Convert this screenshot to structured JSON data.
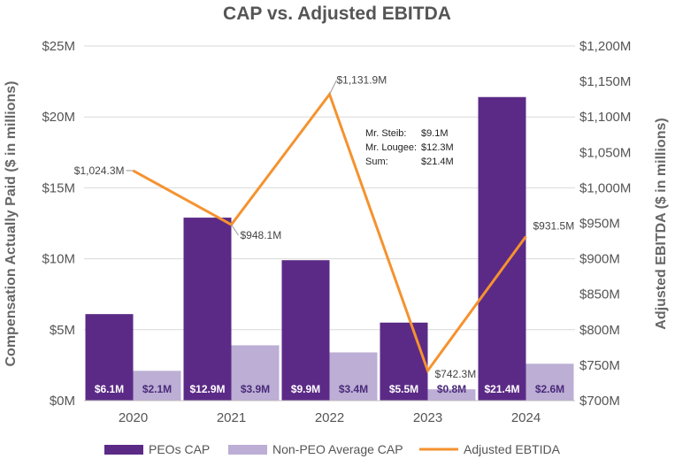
{
  "chart_data": {
    "type": "bar",
    "title": "CAP vs. Adjusted EBITDA",
    "categories": [
      "2020",
      "2021",
      "2022",
      "2023",
      "2024"
    ],
    "ylabel_left": "Compensation Actually Paid ($ in millions)",
    "ylabel_right": "Adjusted EBITDA ($ in millions)",
    "ylim_left": [
      0,
      25
    ],
    "ylim_right": [
      700,
      1200
    ],
    "left_ticks": [
      "$0M",
      "$5M",
      "$10M",
      "$15M",
      "$20M",
      "$25M"
    ],
    "right_ticks": [
      "$700M",
      "$750M",
      "$800M",
      "$850M",
      "$900M",
      "$950M",
      "$1,000M",
      "$1,050M",
      "$1,100M",
      "$1,150M",
      "$1,200M"
    ],
    "series": [
      {
        "name": "PEOs CAP",
        "axis": "left",
        "kind": "bar",
        "color": "#5b2a86",
        "values": [
          6.1,
          12.9,
          9.9,
          5.5,
          21.4
        ],
        "labels": [
          "$6.1M",
          "$12.9M",
          "$9.9M",
          "$5.5M",
          "$21.4M"
        ]
      },
      {
        "name": "Non-PEO Average CAP",
        "axis": "left",
        "kind": "bar",
        "color": "#bcaed4",
        "values": [
          2.1,
          3.9,
          3.4,
          0.8,
          2.6
        ],
        "labels": [
          "$2.1M",
          "$3.9M",
          "$3.4M",
          "$0.8M",
          "$2.6M"
        ]
      },
      {
        "name": "Adjusted EBTIDA",
        "axis": "right",
        "kind": "line",
        "color": "#f5922f",
        "values": [
          1024.3,
          948.1,
          1131.9,
          742.3,
          931.5
        ],
        "labels": [
          "$1,024.3M",
          "$948.1M",
          "$1,131.9M",
          "$742.3M",
          "$931.5M"
        ]
      }
    ],
    "annotation": {
      "rows": [
        {
          "name": "Mr. Steib:",
          "value": "$9.1M"
        },
        {
          "name": "Mr. Lougee:",
          "value": "$12.3M"
        },
        {
          "name": "Sum:",
          "value": "$21.4M"
        }
      ]
    },
    "legend": {
      "position": "bottom",
      "entries": [
        "PEOs CAP",
        "Non-PEO Average CAP",
        "Adjusted EBTIDA"
      ]
    }
  }
}
